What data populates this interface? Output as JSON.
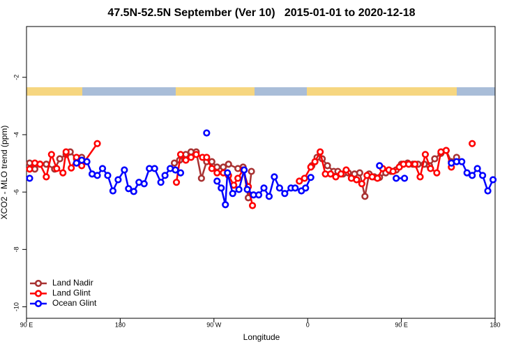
{
  "chart_data": {
    "type": "line",
    "title": "47.5N-52.5N September (Ver 10)   2015-01-01 to 2020-12-18",
    "xlabel": "Longitude",
    "ylabel": "XCO2 - MLO trend (ppm)",
    "xlim": [
      90,
      540
    ],
    "xticks": [
      {
        "value": 90,
        "label": "90 E"
      },
      180,
      {
        "value": 270,
        "label": "90 W"
      },
      {
        "value": 360,
        "label": "0"
      },
      {
        "value": 450,
        "label": "90 E"
      },
      {
        "value": 540,
        "label": "180"
      }
    ],
    "ylim": [
      -10.4,
      -0.23
    ],
    "yticks": [
      -10,
      -8,
      -6,
      -4,
      -2
    ],
    "legend": "lower left",
    "series": [
      {
        "name": "Land Nadir",
        "color": "#a83232",
        "x": [
          93,
          98,
          103,
          109,
          117,
          122,
          128,
          132,
          138,
          143,
          null,
          232,
          237,
          243,
          248,
          253,
          258,
          263,
          268,
          273,
          279,
          284,
          293,
          298,
          303,
          306,
          null,
          364,
          369,
          374,
          379,
          385,
          389,
          394,
          399,
          405,
          410,
          415,
          419,
          424,
          429,
          435,
          440,
          445,
          450,
          456,
          461,
          466,
          472,
          477,
          482,
          488,
          493,
          498,
          503
        ],
        "values": [
          -4.99,
          -5.2,
          -5.03,
          -5.03,
          -5.2,
          -4.84,
          -4.69,
          -4.6,
          -4.84,
          -4.79,
          null,
          -4.99,
          -4.89,
          -4.69,
          -4.6,
          -4.6,
          -5.52,
          -4.94,
          -4.94,
          -5.13,
          -5.13,
          -5.03,
          -5.18,
          -5.13,
          -6.2,
          -5.28,
          null,
          -5.08,
          -4.79,
          -4.84,
          -5.08,
          -5.28,
          -5.28,
          -5.37,
          -5.33,
          -5.37,
          -5.33,
          -6.15,
          -5.37,
          -5.47,
          -5.49,
          -5.33,
          -5.28,
          -5.23,
          -5.03,
          -4.99,
          -5.03,
          -5.03,
          -5.03,
          -5.08,
          -4.84,
          -4.65,
          -4.55,
          -4.94,
          -4.79
        ]
      },
      {
        "name": "Land Glint",
        "color": "#ff0000",
        "x": [
          93,
          98,
          103,
          109,
          114,
          119,
          125,
          128,
          133,
          138,
          143,
          158,
          null,
          234,
          238,
          243,
          248,
          253,
          259,
          263,
          268,
          273,
          279,
          284,
          289,
          293,
          298,
          303,
          307,
          null,
          352,
          357,
          363,
          367,
          372,
          377,
          382,
          387,
          392,
          397,
          402,
          407,
          412,
          417,
          422,
          427,
          432,
          438,
          442,
          448,
          452,
          457,
          463,
          468,
          473,
          478,
          484,
          488,
          493,
          498,
          null,
          518
        ],
        "values": [
          -5.2,
          -4.99,
          -5.03,
          -5.47,
          -4.69,
          -5.18,
          -5.33,
          -4.6,
          -5.16,
          -4.79,
          -5.08,
          -4.31,
          null,
          -5.66,
          -4.69,
          -4.89,
          -4.79,
          -4.69,
          -4.79,
          -4.79,
          -5.18,
          -5.33,
          -5.33,
          -5.42,
          -5.76,
          -5.52,
          -5.23,
          -5.81,
          -6.47,
          null,
          -5.62,
          -5.52,
          -5.13,
          -4.94,
          -4.6,
          -5.37,
          -5.37,
          -5.47,
          -5.37,
          -5.23,
          -5.52,
          -5.57,
          -5.71,
          -5.42,
          -5.47,
          -5.52,
          -5.18,
          -5.23,
          -5.28,
          -5.13,
          -5.03,
          -5.03,
          -5.03,
          -5.47,
          -4.69,
          -5.18,
          -5.33,
          -4.6,
          -4.55,
          -5.13,
          null,
          -4.31
        ]
      },
      {
        "name": "Ocean Glint",
        "color": "#0000ff",
        "x": [
          93,
          null,
          138,
          143,
          148,
          153,
          158,
          163,
          168,
          173,
          178,
          184,
          188,
          193,
          198,
          203,
          208,
          213,
          219,
          223,
          228,
          233,
          238,
          null,
          263,
          null,
          273,
          277,
          281,
          283,
          288,
          294,
          299,
          302,
          308,
          313,
          318,
          323,
          328,
          333,
          338,
          344,
          348,
          354,
          358,
          363,
          null,
          429,
          null,
          445,
          453,
          null,
          498,
          503,
          508,
          513,
          518,
          523,
          528,
          533,
          538
        ],
        "values": [
          -5.52,
          null,
          -4.99,
          -4.89,
          -4.94,
          -5.37,
          -5.42,
          -5.18,
          -5.42,
          -5.96,
          -5.57,
          -5.23,
          -5.88,
          -5.98,
          -5.66,
          -5.71,
          -5.18,
          -5.18,
          -5.66,
          -5.42,
          -5.18,
          -5.23,
          -5.33,
          null,
          -3.94,
          null,
          -5.62,
          -5.86,
          -6.44,
          -5.33,
          -6.05,
          -5.91,
          -5.23,
          -5.91,
          -6.1,
          -6.1,
          -5.86,
          -6.15,
          -5.47,
          -5.86,
          -6.05,
          -5.86,
          -5.86,
          -5.96,
          -5.86,
          -5.49,
          null,
          -5.08,
          null,
          -5.52,
          -5.52,
          null,
          -4.99,
          -4.94,
          -4.94,
          -5.33,
          -5.42,
          -5.18,
          -5.42,
          -5.96,
          -5.57
        ]
      }
    ]
  }
}
